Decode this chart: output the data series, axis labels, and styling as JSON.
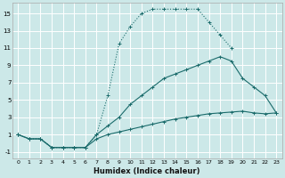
{
  "xlabel": "Humidex (Indice chaleur)",
  "bg_color": "#cce8e8",
  "grid_color": "#ffffff",
  "line_color": "#1a6b6b",
  "xlim": [
    -0.5,
    23.5
  ],
  "ylim": [
    -1.8,
    16.2
  ],
  "xticks": [
    0,
    1,
    2,
    3,
    4,
    5,
    6,
    7,
    8,
    9,
    10,
    11,
    12,
    13,
    14,
    15,
    16,
    17,
    18,
    19,
    20,
    21,
    22,
    23
  ],
  "yticks": [
    -1,
    1,
    3,
    5,
    7,
    9,
    11,
    13,
    15
  ],
  "line_top_x": [
    0,
    1,
    2,
    3,
    4,
    5,
    6,
    7,
    8,
    9,
    10,
    11,
    12,
    13,
    14,
    15,
    16,
    17,
    18,
    19
  ],
  "line_top_y": [
    1,
    0.5,
    0.5,
    -0.5,
    -0.5,
    -0.5,
    -0.5,
    1.0,
    5.5,
    11.5,
    13.5,
    15.0,
    15.5,
    15.5,
    15.5,
    15.5,
    15.5,
    14.0,
    12.5,
    11.0
  ],
  "line_mid_x": [
    0,
    1,
    2,
    3,
    4,
    5,
    6,
    7,
    8,
    9,
    10,
    11,
    12,
    13,
    14,
    15,
    16,
    17,
    18,
    19,
    20,
    21,
    22,
    23
  ],
  "line_mid_y": [
    1,
    0.5,
    0.5,
    -0.5,
    -0.5,
    -0.5,
    -0.5,
    1.0,
    2.0,
    3.0,
    4.5,
    5.5,
    6.5,
    7.5,
    8.0,
    8.5,
    9.0,
    9.5,
    10.0,
    9.5,
    7.5,
    6.5,
    5.5,
    3.5
  ],
  "line_bot_x": [
    0,
    1,
    2,
    3,
    4,
    5,
    6,
    7,
    8,
    9,
    10,
    11,
    12,
    13,
    14,
    15,
    16,
    17,
    18,
    19,
    20,
    21,
    22,
    23
  ],
  "line_bot_y": [
    1,
    0.5,
    0.5,
    -0.5,
    -0.5,
    -0.5,
    -0.5,
    0.5,
    1.0,
    1.3,
    1.6,
    1.9,
    2.2,
    2.5,
    2.8,
    3.0,
    3.2,
    3.4,
    3.5,
    3.6,
    3.7,
    3.5,
    3.4,
    3.5
  ],
  "xtick_fontsize": 4.5,
  "ytick_fontsize": 5.0,
  "xlabel_fontsize": 6.0
}
